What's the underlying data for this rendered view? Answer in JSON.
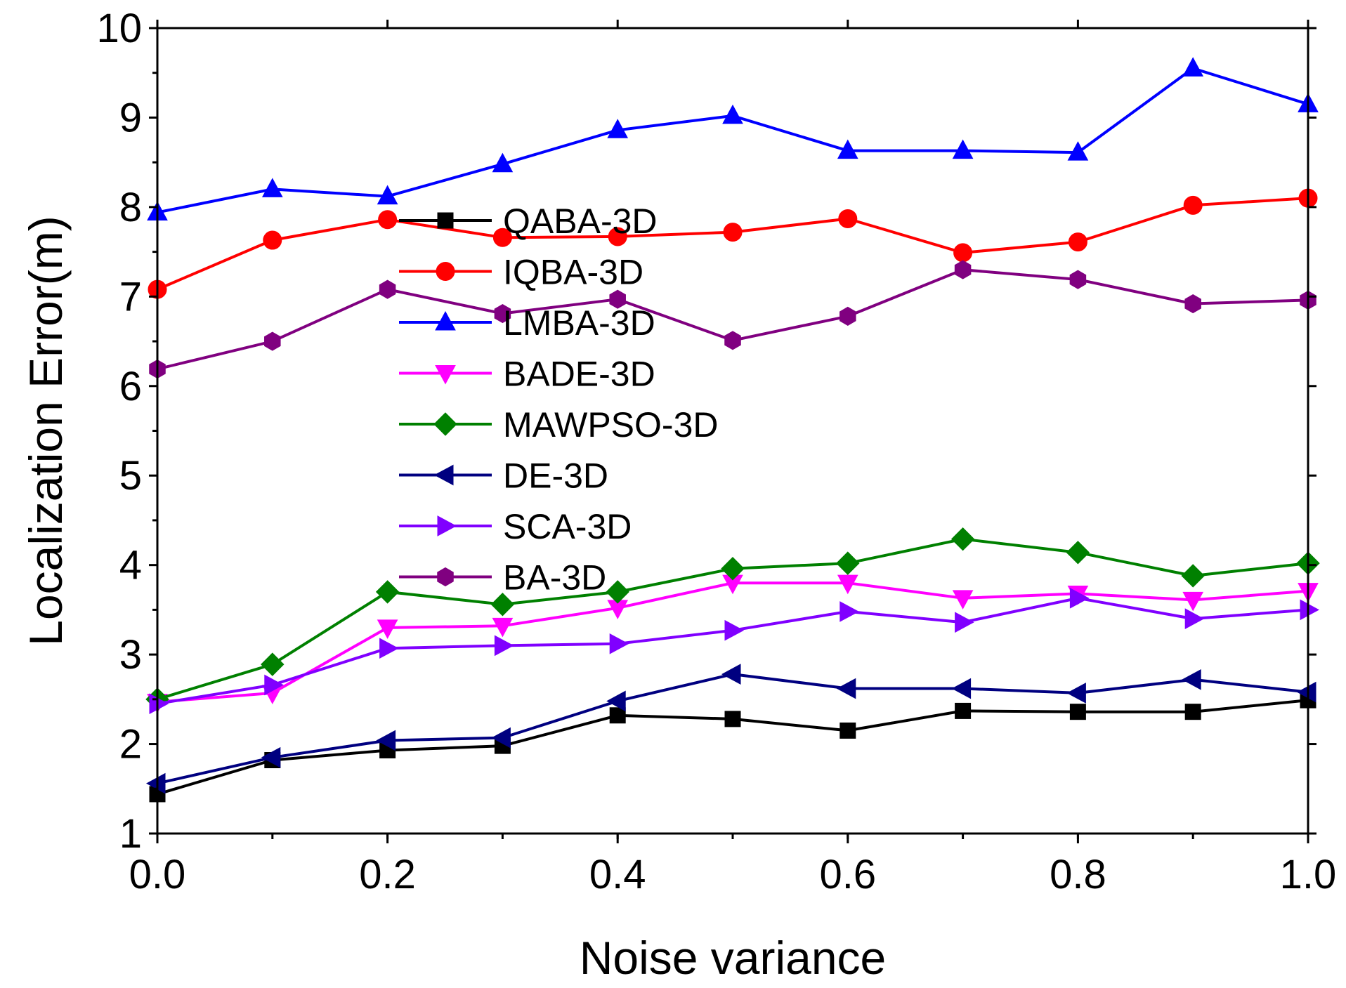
{
  "chart_data": {
    "type": "line",
    "xlabel": "Noise variance",
    "ylabel": "Localization Error(m)",
    "x": [
      0.0,
      0.1,
      0.2,
      0.3,
      0.4,
      0.5,
      0.6,
      0.7,
      0.8,
      0.9,
      1.0
    ],
    "xlim": [
      0.0,
      1.0
    ],
    "ylim": [
      1,
      10
    ],
    "x_ticks": [
      "0.0",
      "0.2",
      "0.4",
      "0.6",
      "0.8",
      "1.0"
    ],
    "y_ticks": [
      "1",
      "2",
      "3",
      "4",
      "5",
      "6",
      "7",
      "8",
      "9",
      "10"
    ],
    "grid": false,
    "legend_position": "center-left",
    "series": [
      {
        "name": "QABA-3D",
        "color": "#000000",
        "marker": "square",
        "values": [
          1.44,
          1.82,
          1.93,
          1.98,
          2.32,
          2.28,
          2.15,
          2.37,
          2.36,
          2.36,
          2.49
        ]
      },
      {
        "name": "IQBA-3D",
        "color": "#ff0000",
        "marker": "circle",
        "values": [
          7.08,
          7.63,
          7.86,
          7.66,
          7.67,
          7.72,
          7.87,
          7.49,
          7.61,
          8.02,
          8.1
        ]
      },
      {
        "name": "LMBA-3D",
        "color": "#0000ff",
        "marker": "triangle-up",
        "values": [
          7.94,
          8.2,
          8.12,
          8.48,
          8.86,
          9.02,
          8.63,
          8.63,
          8.61,
          9.55,
          9.15
        ]
      },
      {
        "name": "BADE-3D",
        "color": "#ff00ff",
        "marker": "triangle-down",
        "values": [
          2.47,
          2.57,
          3.3,
          3.32,
          3.52,
          3.8,
          3.8,
          3.63,
          3.68,
          3.61,
          3.71
        ]
      },
      {
        "name": "MAWPSO-3D",
        "color": "#008000",
        "marker": "diamond",
        "values": [
          2.5,
          2.89,
          3.7,
          3.56,
          3.7,
          3.96,
          4.02,
          4.29,
          4.14,
          3.88,
          4.02
        ]
      },
      {
        "name": "DE-3D",
        "color": "#000080",
        "marker": "triangle-left",
        "values": [
          1.56,
          1.85,
          2.04,
          2.07,
          2.48,
          2.78,
          2.62,
          2.62,
          2.57,
          2.72,
          2.58
        ]
      },
      {
        "name": "SCA-3D",
        "color": "#8000ff",
        "marker": "triangle-right",
        "values": [
          2.45,
          2.66,
          3.07,
          3.1,
          3.12,
          3.27,
          3.48,
          3.36,
          3.63,
          3.4,
          3.5
        ]
      },
      {
        "name": "BA-3D",
        "color": "#800080",
        "marker": "hexagon",
        "values": [
          6.19,
          6.5,
          7.08,
          6.81,
          6.97,
          6.51,
          6.78,
          7.3,
          7.19,
          6.92,
          6.96
        ]
      }
    ]
  }
}
